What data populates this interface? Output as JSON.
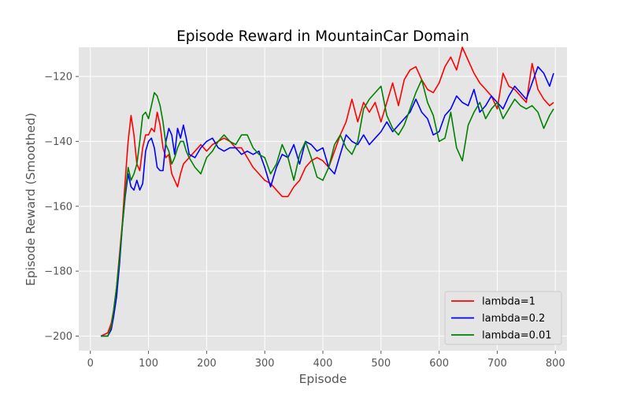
{
  "chart_data": {
    "type": "line",
    "title": "Episode Reward in MountainCar Domain",
    "xlabel": "Episode",
    "ylabel": "Episode Reward (Smoothed)",
    "xlim": [
      -20,
      820
    ],
    "ylim": [
      -204.5,
      -111
    ],
    "xticks": [
      0,
      100,
      200,
      300,
      400,
      500,
      600,
      700,
      800
    ],
    "yticks": [
      -200,
      -180,
      -160,
      -140,
      -120
    ],
    "grid": true,
    "legend_position": "lower-right",
    "series": [
      {
        "name": "lambda=1",
        "color": "#ff0000",
        "x": [
          18,
          30,
          36,
          40,
          45,
          50,
          55,
          60,
          65,
          70,
          75,
          80,
          85,
          90,
          95,
          100,
          105,
          110,
          115,
          120,
          125,
          130,
          135,
          140,
          145,
          150,
          155,
          160,
          165,
          170,
          180,
          190,
          200,
          210,
          220,
          230,
          240,
          250,
          260,
          270,
          280,
          290,
          300,
          310,
          320,
          330,
          340,
          350,
          360,
          370,
          380,
          390,
          400,
          410,
          420,
          430,
          440,
          450,
          460,
          470,
          480,
          490,
          500,
          510,
          520,
          530,
          540,
          550,
          560,
          570,
          580,
          590,
          600,
          610,
          620,
          630,
          640,
          650,
          660,
          670,
          680,
          690,
          700,
          710,
          720,
          730,
          740,
          750,
          760,
          770,
          780,
          790,
          797
        ],
        "y": [
          -200,
          -199,
          -196,
          -192,
          -185,
          -175,
          -165,
          -152,
          -140,
          -132,
          -138,
          -147,
          -149,
          -142,
          -138,
          -138,
          -136,
          -137,
          -131,
          -135,
          -142,
          -145,
          -144,
          -150,
          -152,
          -154,
          -150,
          -147,
          -146,
          -145,
          -143,
          -141,
          -143,
          -141,
          -140,
          -139,
          -140,
          -142,
          -142,
          -145,
          -148,
          -150,
          -152,
          -153,
          -155,
          -157,
          -157,
          -154,
          -152,
          -148,
          -146,
          -145,
          -146,
          -148,
          -143,
          -138,
          -134,
          -127,
          -134,
          -128,
          -131,
          -128,
          -134,
          -128,
          -122,
          -129,
          -121,
          -118,
          -117,
          -121,
          -124,
          -125,
          -122,
          -117,
          -114,
          -118,
          -111,
          -115,
          -119,
          -122,
          -124,
          -126,
          -130,
          -119,
          -123,
          -124,
          -126,
          -128,
          -116,
          -124,
          -127,
          -129,
          -128
        ]
      },
      {
        "name": "lambda=0.2",
        "color": "#0000ff",
        "x": [
          18,
          30,
          36,
          40,
          45,
          50,
          55,
          60,
          65,
          70,
          75,
          80,
          85,
          90,
          95,
          100,
          105,
          110,
          115,
          120,
          125,
          130,
          135,
          140,
          145,
          150,
          155,
          160,
          165,
          170,
          180,
          190,
          200,
          210,
          220,
          230,
          240,
          250,
          260,
          270,
          280,
          290,
          300,
          310,
          320,
          330,
          340,
          350,
          360,
          370,
          380,
          390,
          400,
          410,
          420,
          430,
          440,
          450,
          460,
          470,
          480,
          490,
          500,
          510,
          520,
          530,
          540,
          550,
          560,
          570,
          580,
          590,
          600,
          610,
          620,
          630,
          640,
          650,
          660,
          670,
          680,
          690,
          700,
          710,
          720,
          730,
          740,
          750,
          760,
          770,
          780,
          790,
          797
        ],
        "y": [
          -200,
          -200,
          -198,
          -194,
          -188,
          -178,
          -166,
          -157,
          -150,
          -154,
          -155,
          -152,
          -155,
          -153,
          -143,
          -140,
          -139,
          -142,
          -148,
          -149,
          -149,
          -140,
          -136,
          -138,
          -144,
          -136,
          -139,
          -135,
          -139,
          -144,
          -145,
          -142,
          -140,
          -139,
          -142,
          -143,
          -142,
          -142,
          -144,
          -143,
          -144,
          -143,
          -148,
          -154,
          -148,
          -144,
          -145,
          -141,
          -147,
          -140,
          -141,
          -143,
          -142,
          -148,
          -150,
          -144,
          -138,
          -140,
          -141,
          -138,
          -141,
          -139,
          -137,
          -134,
          -137,
          -135,
          -133,
          -131,
          -127,
          -131,
          -133,
          -138,
          -137,
          -132,
          -130,
          -126,
          -128,
          -129,
          -124,
          -131,
          -129,
          -126,
          -128,
          -130,
          -126,
          -123,
          -125,
          -127,
          -122,
          -117,
          -119,
          -123,
          -119
        ]
      },
      {
        "name": "lambda=0.01",
        "color": "#008000",
        "x": [
          18,
          30,
          36,
          40,
          45,
          50,
          55,
          60,
          65,
          70,
          75,
          80,
          85,
          90,
          95,
          100,
          105,
          110,
          115,
          120,
          125,
          130,
          135,
          140,
          145,
          150,
          155,
          160,
          165,
          170,
          180,
          190,
          200,
          210,
          220,
          230,
          240,
          250,
          260,
          270,
          280,
          290,
          300,
          310,
          320,
          330,
          340,
          350,
          360,
          370,
          380,
          390,
          400,
          410,
          420,
          430,
          440,
          450,
          460,
          470,
          480,
          490,
          500,
          510,
          520,
          530,
          540,
          550,
          560,
          570,
          580,
          590,
          600,
          610,
          620,
          630,
          640,
          650,
          660,
          670,
          680,
          690,
          700,
          710,
          720,
          730,
          740,
          750,
          760,
          770,
          780,
          790,
          797
        ],
        "y": [
          -200,
          -200,
          -197,
          -192,
          -185,
          -176,
          -166,
          -156,
          -148,
          -152,
          -150,
          -147,
          -140,
          -132,
          -131,
          -133,
          -129,
          -125,
          -126,
          -129,
          -134,
          -141,
          -143,
          -147,
          -145,
          -142,
          -140,
          -140,
          -143,
          -145,
          -148,
          -150,
          -145,
          -143,
          -140,
          -138,
          -140,
          -141,
          -138,
          -138,
          -142,
          -144,
          -145,
          -150,
          -147,
          -141,
          -145,
          -152,
          -144,
          -140,
          -145,
          -151,
          -152,
          -148,
          -141,
          -138,
          -142,
          -144,
          -140,
          -130,
          -127,
          -125,
          -123,
          -132,
          -136,
          -138,
          -135,
          -130,
          -125,
          -121,
          -128,
          -132,
          -140,
          -139,
          -131,
          -142,
          -146,
          -135,
          -131,
          -128,
          -133,
          -130,
          -128,
          -133,
          -130,
          -127,
          -129,
          -130,
          -129,
          -131,
          -136,
          -132,
          -130
        ]
      }
    ]
  }
}
